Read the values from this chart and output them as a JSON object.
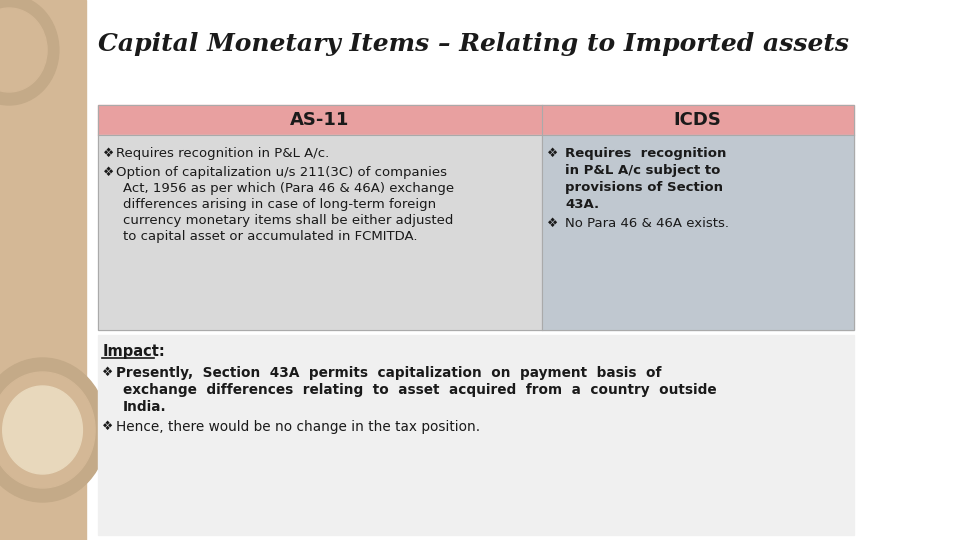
{
  "title": "Capital Monetary Items – Relating to Imported assets",
  "bg_color": "#ffffff",
  "left_panel_bg": "#d9d9d9",
  "right_panel_bg": "#c0c8d0",
  "header_color": "#e8a0a0",
  "left_strip_color": "#d4b896",
  "header_left": "AS-11",
  "header_right": "ICDS",
  "impact_label": "Impact:"
}
